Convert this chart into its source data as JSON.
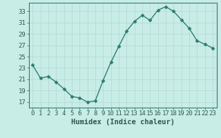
{
  "x": [
    0,
    1,
    2,
    3,
    4,
    5,
    6,
    7,
    8,
    9,
    10,
    11,
    12,
    13,
    14,
    15,
    16,
    17,
    18,
    19,
    20,
    21,
    22,
    23
  ],
  "y": [
    23.5,
    21.2,
    21.5,
    20.5,
    19.3,
    18.0,
    17.7,
    17.0,
    17.2,
    20.8,
    24.0,
    26.8,
    29.5,
    31.2,
    32.3,
    31.4,
    33.2,
    33.8,
    33.0,
    31.5,
    30.0,
    27.8,
    27.2,
    26.5
  ],
  "line_color": "#2d7e6e",
  "marker": "D",
  "marker_size": 2.5,
  "line_width": 1.0,
  "bg_color": "#c8ece6",
  "grid_color": "#b0d8d0",
  "xlabel": "Humidex (Indice chaleur)",
  "xlabel_fontsize": 7.5,
  "tick_fontsize": 6.5,
  "yticks": [
    17,
    19,
    21,
    23,
    25,
    27,
    29,
    31,
    33
  ],
  "xticks": [
    0,
    1,
    2,
    3,
    4,
    5,
    6,
    7,
    8,
    9,
    10,
    11,
    12,
    13,
    14,
    15,
    16,
    17,
    18,
    19,
    20,
    21,
    22,
    23
  ],
  "xlim": [
    -0.5,
    23.5
  ],
  "ylim": [
    16.0,
    34.5
  ],
  "axis_color": "#2d5a4a",
  "spine_color": "#2d7e6e"
}
